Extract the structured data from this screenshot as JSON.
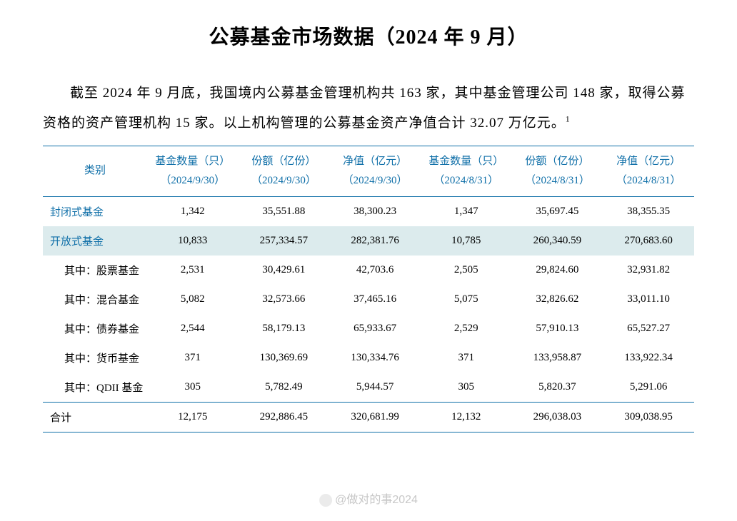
{
  "title": "公募基金市场数据（2024 年 9 月）",
  "intro_text": "截至 2024 年 9 月底，我国境内公募基金管理机构共 163 家，其中基金管理公司 148 家，取得公募资格的资产管理机构 15 家。以上机构管理的公募基金资产净值合计 32.07 万亿元。",
  "footnote_mark": "1",
  "table": {
    "header_colors": {
      "text": "#0f6fa8",
      "border": "#0f6fa8"
    },
    "highlight_bg": "#dcebed",
    "columns": [
      {
        "line1": "类别",
        "line2": ""
      },
      {
        "line1": "基金数量（只）",
        "line2": "（2024/9/30）"
      },
      {
        "line1": "份额（亿份）",
        "line2": "（2024/9/30）"
      },
      {
        "line1": "净值（亿元）",
        "line2": "（2024/9/30）"
      },
      {
        "line1": "基金数量（只）",
        "line2": "（2024/8/31）"
      },
      {
        "line1": "份额（亿份）",
        "line2": "（2024/8/31）"
      },
      {
        "line1": "净值（亿元）",
        "line2": "（2024/8/31）"
      }
    ],
    "rows": [
      {
        "type": "main",
        "highlight": false,
        "cells": [
          "封闭式基金",
          "1,342",
          "35,551.88",
          "38,300.23",
          "1,347",
          "35,697.45",
          "38,355.35"
        ]
      },
      {
        "type": "main",
        "highlight": true,
        "cells": [
          "开放式基金",
          "10,833",
          "257,334.57",
          "282,381.76",
          "10,785",
          "260,340.59",
          "270,683.60"
        ]
      },
      {
        "type": "sub",
        "highlight": false,
        "cells": [
          "其中：股票基金",
          "2,531",
          "30,429.61",
          "42,703.6",
          "2,505",
          "29,824.60",
          "32,931.82"
        ]
      },
      {
        "type": "sub",
        "highlight": false,
        "cells": [
          "其中：混合基金",
          "5,082",
          "32,573.66",
          "37,465.16",
          "5,075",
          "32,826.62",
          "33,011.10"
        ]
      },
      {
        "type": "sub",
        "highlight": false,
        "cells": [
          "其中：债券基金",
          "2,544",
          "58,179.13",
          "65,933.67",
          "2,529",
          "57,910.13",
          "65,527.27"
        ]
      },
      {
        "type": "sub",
        "highlight": false,
        "cells": [
          "其中：货币基金",
          "371",
          "130,369.69",
          "130,334.76",
          "371",
          "133,958.87",
          "133,922.34"
        ]
      },
      {
        "type": "sub",
        "highlight": false,
        "cells": [
          "其中：QDII 基金",
          "305",
          "5,782.49",
          "5,944.57",
          "305",
          "5,820.37",
          "5,291.06"
        ]
      },
      {
        "type": "total",
        "highlight": false,
        "cells": [
          "合计",
          "12,175",
          "292,886.45",
          "320,681.99",
          "12,132",
          "296,038.03",
          "309,038.95"
        ]
      }
    ]
  },
  "watermark": "@做对的事2024"
}
